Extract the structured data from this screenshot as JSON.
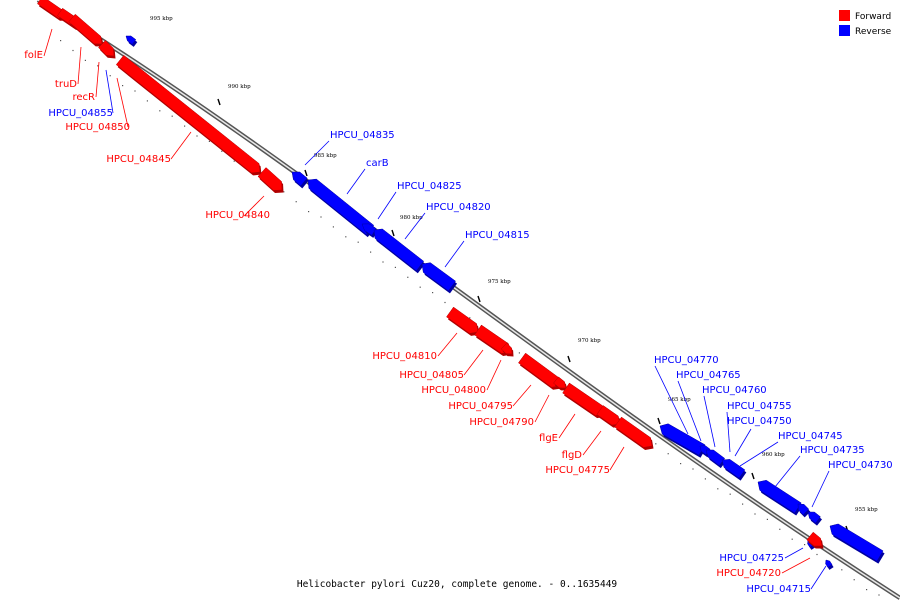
{
  "caption": "Helicobacter pylori Cuz20, complete genome. - 0..1635449",
  "legend": [
    {
      "label": "Forward",
      "color": "#ff0000"
    },
    {
      "label": "Reverse",
      "color": "#0000ff"
    }
  ],
  "colors": {
    "forward": "#ff0000",
    "reverse": "#0000ff",
    "forward_dark": "#b00000",
    "reverse_dark": "#0000a0"
  },
  "ticks": [
    {
      "label": "995 kbp"
    },
    {
      "label": "990 kbp"
    },
    {
      "label": "985 kbp"
    },
    {
      "label": "980 kbp"
    },
    {
      "label": "975 kbp"
    },
    {
      "label": "970 kbp"
    },
    {
      "label": "965 kbp"
    },
    {
      "label": "960 kbp"
    },
    {
      "label": "955 kbp"
    }
  ],
  "genes": [
    {
      "label": "folE",
      "strand": "forward"
    },
    {
      "label": "truD",
      "strand": "forward"
    },
    {
      "label": "recR",
      "strand": "forward"
    },
    {
      "label": "HPCU_04855",
      "strand": "reverse"
    },
    {
      "label": "HPCU_04850",
      "strand": "forward"
    },
    {
      "label": "HPCU_04845",
      "strand": "forward"
    },
    {
      "label": "HPCU_04840",
      "strand": "forward"
    },
    {
      "label": "HPCU_04835",
      "strand": "reverse"
    },
    {
      "label": "carB",
      "strand": "reverse"
    },
    {
      "label": "HPCU_04825",
      "strand": "reverse"
    },
    {
      "label": "HPCU_04820",
      "strand": "reverse"
    },
    {
      "label": "HPCU_04815",
      "strand": "reverse"
    },
    {
      "label": "HPCU_04810",
      "strand": "forward"
    },
    {
      "label": "HPCU_04805",
      "strand": "forward"
    },
    {
      "label": "HPCU_04800",
      "strand": "forward"
    },
    {
      "label": "HPCU_04795",
      "strand": "forward"
    },
    {
      "label": "HPCU_04790",
      "strand": "forward"
    },
    {
      "label": "flgE",
      "strand": "forward"
    },
    {
      "label": "flgD",
      "strand": "forward"
    },
    {
      "label": "HPCU_04775",
      "strand": "forward"
    },
    {
      "label": "HPCU_04770",
      "strand": "reverse"
    },
    {
      "label": "HPCU_04765",
      "strand": "reverse"
    },
    {
      "label": "HPCU_04760",
      "strand": "reverse"
    },
    {
      "label": "HPCU_04755",
      "strand": "reverse"
    },
    {
      "label": "HPCU_04750",
      "strand": "reverse"
    },
    {
      "label": "HPCU_04745",
      "strand": "reverse"
    },
    {
      "label": "HPCU_04735",
      "strand": "reverse"
    },
    {
      "label": "HPCU_04730",
      "strand": "reverse"
    },
    {
      "label": "HPCU_04725",
      "strand": "reverse"
    },
    {
      "label": "HPCU_04720",
      "strand": "forward"
    },
    {
      "label": "HPCU_04715",
      "strand": "reverse"
    }
  ]
}
